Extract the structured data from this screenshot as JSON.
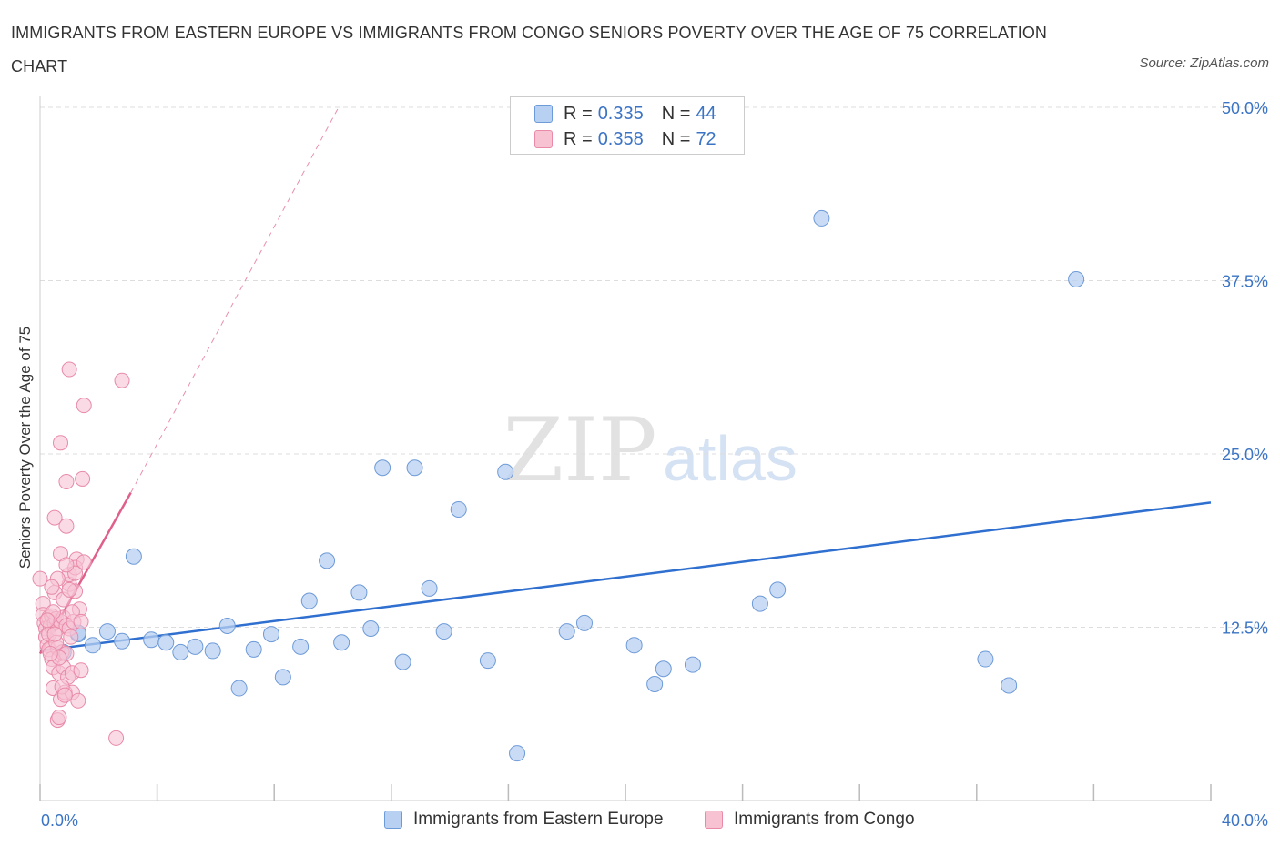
{
  "header": {
    "title": "IMMIGRANTS FROM EASTERN EUROPE VS IMMIGRANTS FROM CONGO SENIORS POVERTY OVER THE AGE OF 75 CORRELATION CHART",
    "source": "Source: ZipAtlas.com"
  },
  "watermark": {
    "zip": "ZIP",
    "atlas": "atlas"
  },
  "legend": {
    "series1": {
      "r_label": "R = ",
      "r_value": "0.335",
      "n_label": "N = ",
      "n_value": "44"
    },
    "series2": {
      "r_label": "R = ",
      "r_value": "0.358",
      "n_label": "N = ",
      "n_value": "72"
    }
  },
  "colors": {
    "blue_fill": "#b8d0f2",
    "blue_stroke": "#6d9ad8",
    "blue_line": "#2f6fcf",
    "pink_fill": "#f7c3d3",
    "pink_stroke": "#e88aa8",
    "pink_line": "#e0608b",
    "axis_text": "#3b74c4",
    "grid": "#dddddd"
  },
  "chart_data": {
    "type": "scatter",
    "title": "IMMIGRANTS FROM EASTERN EUROPE VS IMMIGRANTS FROM CONGO SENIORS POVERTY OVER THE AGE OF 75 CORRELATION CHART",
    "xlabel": "",
    "ylabel": "Seniors Poverty Over the Age of 75",
    "xlim": [
      0,
      40
    ],
    "ylim": [
      0,
      50
    ],
    "x_tick_labels": [
      "0.0%",
      "40.0%"
    ],
    "y_ticks": [
      12.5,
      25,
      37.5,
      50
    ],
    "y_tick_labels": [
      "12.5%",
      "25.0%",
      "37.5%",
      "50.0%"
    ],
    "series": [
      {
        "name": "Immigrants from Eastern Europe",
        "color": "#b8d0f2",
        "trend": {
          "x": [
            0,
            40
          ],
          "y": [
            10.8,
            21.5
          ]
        },
        "points": [
          [
            1.3,
            12.0
          ],
          [
            1.8,
            11.2
          ],
          [
            2.3,
            12.2
          ],
          [
            2.8,
            11.5
          ],
          [
            3.2,
            17.6
          ],
          [
            3.8,
            11.6
          ],
          [
            4.3,
            11.4
          ],
          [
            4.8,
            10.7
          ],
          [
            5.3,
            11.1
          ],
          [
            5.9,
            10.8
          ],
          [
            6.4,
            12.6
          ],
          [
            6.8,
            8.1
          ],
          [
            7.3,
            10.9
          ],
          [
            7.9,
            12.0
          ],
          [
            8.3,
            8.9
          ],
          [
            8.9,
            11.1
          ],
          [
            9.2,
            14.4
          ],
          [
            9.8,
            17.3
          ],
          [
            10.3,
            11.4
          ],
          [
            10.9,
            15.0
          ],
          [
            11.3,
            12.4
          ],
          [
            11.7,
            24.0
          ],
          [
            12.4,
            10.0
          ],
          [
            12.8,
            24.0
          ],
          [
            13.3,
            15.3
          ],
          [
            13.8,
            12.2
          ],
          [
            14.3,
            21.0
          ],
          [
            15.3,
            10.1
          ],
          [
            15.9,
            23.7
          ],
          [
            16.3,
            3.4
          ],
          [
            18.0,
            12.2
          ],
          [
            18.6,
            12.8
          ],
          [
            20.3,
            11.2
          ],
          [
            21.0,
            8.4
          ],
          [
            21.3,
            9.5
          ],
          [
            22.3,
            9.8
          ],
          [
            24.6,
            14.2
          ],
          [
            25.2,
            15.2
          ],
          [
            26.7,
            42.0
          ],
          [
            32.3,
            10.2
          ],
          [
            33.1,
            8.3
          ],
          [
            35.4,
            37.6
          ],
          [
            0.8,
            10.7
          ],
          [
            1.3,
            12.1
          ]
        ]
      },
      {
        "name": "Immigrants from Congo",
        "color": "#f7c3d3",
        "trend": {
          "x": [
            0,
            3.1
          ],
          "y": [
            10.6,
            22.2
          ]
        },
        "trend_extension": {
          "x": [
            3.1,
            10.2
          ],
          "y": [
            22.2,
            50
          ]
        },
        "points": [
          [
            0.0,
            16.0
          ],
          [
            0.1,
            14.2
          ],
          [
            0.1,
            13.4
          ],
          [
            0.15,
            12.8
          ],
          [
            0.2,
            12.4
          ],
          [
            0.2,
            11.8
          ],
          [
            0.25,
            11.2
          ],
          [
            0.3,
            10.9
          ],
          [
            0.3,
            13.2
          ],
          [
            0.35,
            12.6
          ],
          [
            0.4,
            13.3
          ],
          [
            0.4,
            10.2
          ],
          [
            0.45,
            9.6
          ],
          [
            0.45,
            8.1
          ],
          [
            0.5,
            12.8
          ],
          [
            0.5,
            15.0
          ],
          [
            0.55,
            13.1
          ],
          [
            0.6,
            12.4
          ],
          [
            0.6,
            11.0
          ],
          [
            0.65,
            9.2
          ],
          [
            0.7,
            7.3
          ],
          [
            0.7,
            12.9
          ],
          [
            0.75,
            10.7
          ],
          [
            0.8,
            13.2
          ],
          [
            0.8,
            9.6
          ],
          [
            0.85,
            7.8
          ],
          [
            0.9,
            12.6
          ],
          [
            0.9,
            10.6
          ],
          [
            0.95,
            8.9
          ],
          [
            1.0,
            12.4
          ],
          [
            1.0,
            15.6
          ],
          [
            1.05,
            11.8
          ],
          [
            1.1,
            9.2
          ],
          [
            1.1,
            7.8
          ],
          [
            1.15,
            12.9
          ],
          [
            1.2,
            15.1
          ],
          [
            1.25,
            17.4
          ],
          [
            1.3,
            7.2
          ],
          [
            1.35,
            13.8
          ],
          [
            1.4,
            9.4
          ],
          [
            1.0,
            31.1
          ],
          [
            0.7,
            25.8
          ],
          [
            1.5,
            28.5
          ],
          [
            2.8,
            30.3
          ],
          [
            0.9,
            23.0
          ],
          [
            1.45,
            23.2
          ],
          [
            0.5,
            20.4
          ],
          [
            0.9,
            19.8
          ],
          [
            0.7,
            17.8
          ],
          [
            1.0,
            16.3
          ],
          [
            1.2,
            16.8
          ],
          [
            0.6,
            16.0
          ],
          [
            0.4,
            15.4
          ],
          [
            0.8,
            14.5
          ],
          [
            1.1,
            13.6
          ],
          [
            0.3,
            12.0
          ],
          [
            0.55,
            11.4
          ],
          [
            0.65,
            10.3
          ],
          [
            0.75,
            8.2
          ],
          [
            0.85,
            7.6
          ],
          [
            0.6,
            5.8
          ],
          [
            2.6,
            4.5
          ],
          [
            1.0,
            15.2
          ],
          [
            1.2,
            16.4
          ],
          [
            0.9,
            17.0
          ],
          [
            0.5,
            12.0
          ],
          [
            0.35,
            10.6
          ],
          [
            0.45,
            13.6
          ],
          [
            0.25,
            13.0
          ],
          [
            1.4,
            12.9
          ],
          [
            1.5,
            17.2
          ],
          [
            0.65,
            6.0
          ]
        ]
      }
    ],
    "legend": [
      "Immigrants from Eastern Europe",
      "Immigrants from Congo"
    ]
  }
}
